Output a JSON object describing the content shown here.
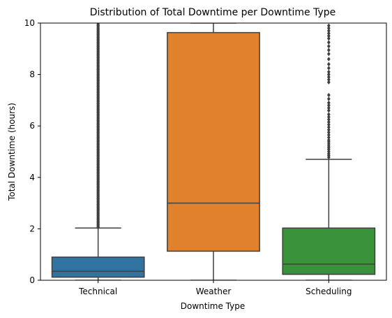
{
  "chart_data": {
    "type": "box",
    "title": "Distribution of Total Downtime per Downtime Type",
    "xlabel": "Downtime Type",
    "ylabel": "Total Downtime (hours)",
    "ylim": [
      0,
      10
    ],
    "yticks": [
      "0",
      "2",
      "4",
      "6",
      "8",
      "10"
    ],
    "grid": false,
    "categories": [
      "Technical",
      "Weather",
      "Scheduling"
    ],
    "colors": [
      "#3274a1",
      "#e1812c",
      "#3a923a"
    ],
    "boxes": [
      {
        "category": "Technical",
        "whisker_low": 0.0,
        "q1": 0.12,
        "median": 0.35,
        "q3": 0.9,
        "whisker_high": 2.03,
        "outliers": [
          2.05,
          2.1,
          2.15,
          2.2,
          2.25,
          2.3,
          2.35,
          2.4,
          2.45,
          2.5,
          2.55,
          2.6,
          2.65,
          2.7,
          2.75,
          2.8,
          2.85,
          2.9,
          2.95,
          3.0,
          3.05,
          3.1,
          3.15,
          3.2,
          3.25,
          3.3,
          3.35,
          3.4,
          3.45,
          3.5,
          3.55,
          3.6,
          3.65,
          3.7,
          3.75,
          3.8,
          3.85,
          3.9,
          3.95,
          4.0,
          4.05,
          4.1,
          4.15,
          4.2,
          4.25,
          4.3,
          4.35,
          4.4,
          4.45,
          4.5,
          4.55,
          4.6,
          4.65,
          4.7,
          4.75,
          4.8,
          4.85,
          4.9,
          4.95,
          5.0,
          5.05,
          5.1,
          5.15,
          5.2,
          5.25,
          5.3,
          5.35,
          5.4,
          5.45,
          5.5,
          5.55,
          5.6,
          5.65,
          5.7,
          5.75,
          5.8,
          5.85,
          5.9,
          5.95,
          6.0,
          6.05,
          6.1,
          6.15,
          6.2,
          6.25,
          6.3,
          6.35,
          6.4,
          6.45,
          6.5,
          6.55,
          6.6,
          6.65,
          6.7,
          6.75,
          6.8,
          6.85,
          6.9,
          6.95,
          7.0,
          7.05,
          7.1,
          7.15,
          7.2,
          7.25,
          7.3,
          7.35,
          7.4,
          7.45,
          7.5,
          7.55,
          7.6,
          7.65,
          7.7,
          7.75,
          7.8,
          7.85,
          7.9,
          7.95,
          8.0,
          8.05,
          8.1,
          8.15,
          8.2,
          8.25,
          8.3,
          8.35,
          8.4,
          8.45,
          8.5,
          8.55,
          8.6,
          8.65,
          8.7,
          8.75,
          8.8,
          8.85,
          8.9,
          8.95,
          9.0,
          9.05,
          9.1,
          9.15,
          9.2,
          9.25,
          9.3,
          9.35,
          9.4,
          9.45,
          9.5,
          9.55,
          9.6,
          9.65,
          9.7,
          9.75,
          9.8,
          9.85,
          9.9,
          9.95
        ]
      },
      {
        "category": "Weather",
        "whisker_low": 0.0,
        "q1": 1.13,
        "median": 3.0,
        "q3": 9.63,
        "whisker_high": 10.0,
        "outliers": []
      },
      {
        "category": "Scheduling",
        "whisker_low": 0.0,
        "q1": 0.23,
        "median": 0.63,
        "q3": 2.03,
        "whisker_high": 4.7,
        "outliers": [
          4.78,
          4.85,
          4.92,
          5.0,
          5.08,
          5.15,
          5.22,
          5.3,
          5.38,
          5.45,
          5.55,
          5.65,
          5.75,
          5.85,
          5.95,
          6.05,
          6.15,
          6.25,
          6.35,
          6.45,
          6.6,
          6.7,
          6.8,
          6.9,
          7.05,
          7.2,
          7.7,
          7.8,
          7.9,
          8.0,
          8.1,
          8.25,
          8.4,
          8.6,
          8.8,
          8.95,
          9.1,
          9.25,
          9.4,
          9.5,
          9.6,
          9.7,
          9.8,
          9.9
        ]
      }
    ]
  }
}
